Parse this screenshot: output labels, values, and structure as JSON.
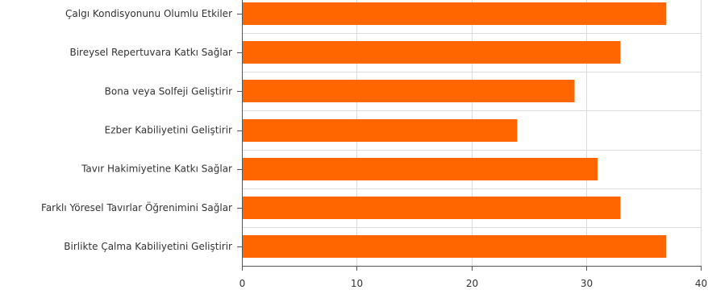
{
  "chart_data": {
    "type": "bar",
    "orientation": "horizontal",
    "categories": [
      "Çalgı Kondisyonunu Olumlu Etkiler",
      "Bireysel Repertuvara Katkı Sağlar",
      "Bona veya Solfeji Geliştirir",
      "Ezber Kabiliyetini Geliştirir",
      "Tavır Hakimiyetine Katkı Sağlar",
      "Farklı Yöresel Tavırlar Öğrenimini Sağlar",
      "Birlikte Çalma Kabiliyetini Geliştirir"
    ],
    "values": [
      37,
      33,
      29,
      24,
      31,
      33,
      37
    ],
    "xlim": [
      0,
      40
    ],
    "xticks": [
      "0",
      "10",
      "20",
      "30",
      "40"
    ],
    "title": "",
    "xlabel": "",
    "ylabel": "",
    "grid": true,
    "bar_color": "#ff6600"
  }
}
